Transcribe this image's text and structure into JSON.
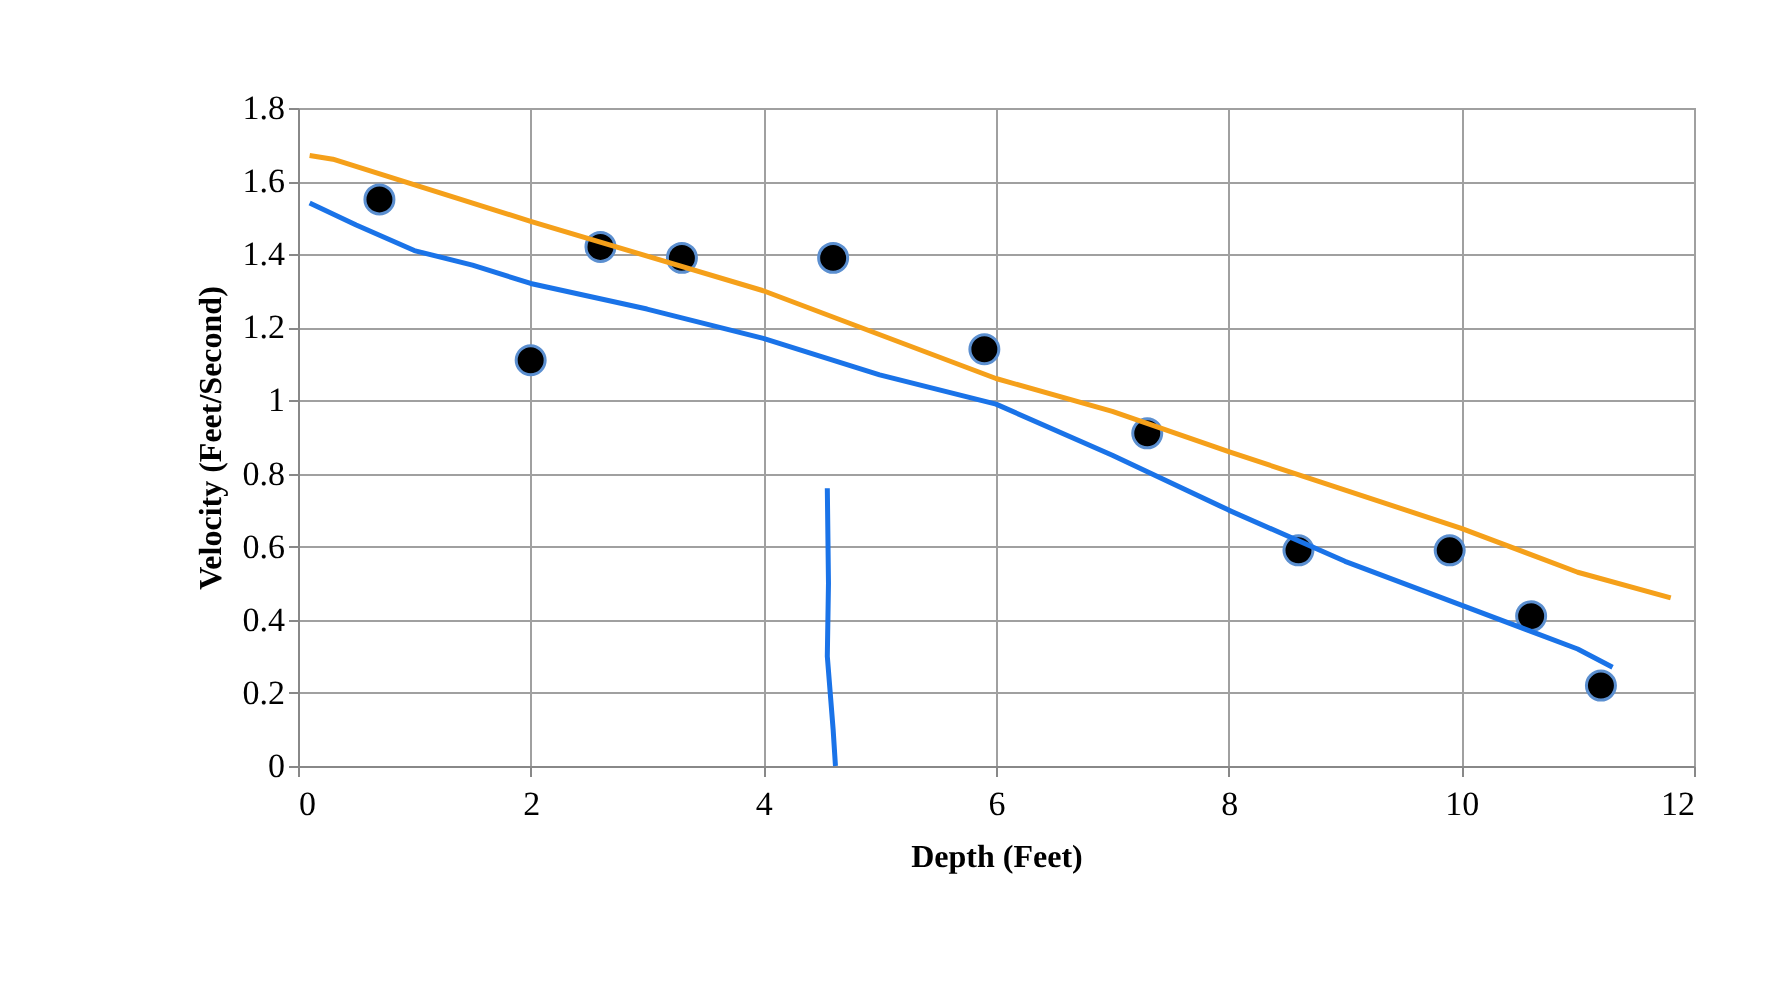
{
  "chart_data": {
    "type": "scatter",
    "xlabel": "Depth (Feet)",
    "ylabel": "Velocity (Feet/Second)",
    "xlim": [
      0,
      12
    ],
    "xticks": [
      0,
      2,
      4,
      6,
      8,
      10,
      12
    ],
    "ylim": [
      0,
      1.8
    ],
    "yticks": [
      0,
      0.2,
      0.4,
      0.6,
      0.8,
      1,
      1.2,
      1.4,
      1.6,
      1.8
    ],
    "grid": true,
    "series": [
      {
        "type": "scatter",
        "marker": "circle",
        "color": "#000000",
        "x": [
          0.7,
          2,
          2.6,
          3.3,
          4.6,
          5.9,
          7.3,
          8.6,
          9.9,
          10.6,
          11.2
        ],
        "values": [
          1.55,
          1.11,
          1.42,
          1.39,
          1.39,
          1.14,
          0.91,
          0.59,
          0.59,
          0.41,
          0.22
        ]
      },
      {
        "type": "line",
        "marker": "none",
        "color": "#f5a01a",
        "x": [
          0.1,
          0.3,
          2,
          4,
          6,
          7,
          8,
          10,
          11,
          11.8
        ],
        "values": [
          1.67,
          1.66,
          1.49,
          1.3,
          1.06,
          0.97,
          0.86,
          0.65,
          0.53,
          0.46
        ]
      },
      {
        "type": "line",
        "marker": "none",
        "color": "#1a73e8",
        "x": [
          0.1,
          0.5,
          1,
          1.5,
          2,
          3,
          4,
          4.5,
          5,
          6,
          7,
          8,
          9,
          10,
          11,
          11.3
        ],
        "values": [
          1.54,
          1.48,
          1.41,
          1.37,
          1.32,
          1.25,
          1.17,
          1.12,
          1.07,
          0.99,
          0.85,
          0.7,
          0.56,
          0.44,
          0.32,
          0.27
        ]
      },
      {
        "type": "line",
        "marker": "none",
        "color": "#1a73e8",
        "x": [
          4.55,
          4.56,
          4.55,
          4.6,
          4.62
        ],
        "values": [
          0.76,
          0.5,
          0.3,
          0.1,
          0
        ]
      }
    ]
  }
}
